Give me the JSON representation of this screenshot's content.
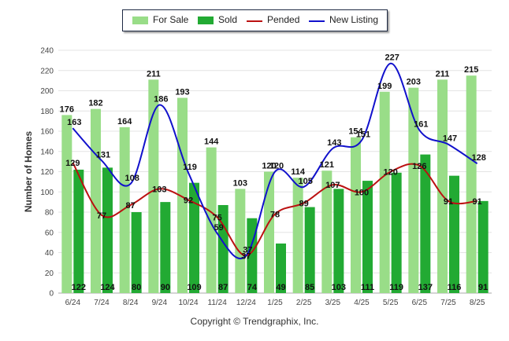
{
  "chart_data": {
    "type": "bar",
    "title": "",
    "xlabel": "",
    "ylabel": "Number of Homes",
    "ylim": [
      0,
      240
    ],
    "yticks": [
      0,
      20,
      40,
      60,
      80,
      100,
      120,
      140,
      160,
      180,
      200,
      220,
      240
    ],
    "grid": true,
    "legend_position": "top",
    "categories": [
      "6/24",
      "7/24",
      "8/24",
      "9/24",
      "10/24",
      "11/24",
      "12/24",
      "1/25",
      "2/25",
      "3/25",
      "4/25",
      "5/25",
      "6/25",
      "7/25",
      "8/25"
    ],
    "series": [
      {
        "name": "For Sale",
        "kind": "bar",
        "color": "#99dd88",
        "values": [
          176,
          182,
          164,
          211,
          193,
          144,
          103,
          120,
          114,
          121,
          154,
          199,
          203,
          211,
          215
        ]
      },
      {
        "name": "Sold",
        "kind": "bar",
        "color": "#22aa33",
        "values": [
          122,
          124,
          80,
          90,
          109,
          87,
          74,
          49,
          85,
          103,
          111,
          119,
          137,
          116,
          91
        ]
      },
      {
        "name": "Pended",
        "kind": "line",
        "color": "#bb1111",
        "values": [
          129,
          77,
          87,
          103,
          92,
          75,
          37,
          78,
          89,
          107,
          100,
          120,
          126,
          91,
          91
        ]
      },
      {
        "name": "New Listing",
        "kind": "line",
        "color": "#1111cc",
        "values": [
          163,
          131,
          108,
          186,
          119,
          59,
          37,
          120,
          105,
          143,
          151,
          227,
          161,
          147,
          128
        ]
      }
    ]
  },
  "copyright": "Copyright © Trendgraphix, Inc."
}
